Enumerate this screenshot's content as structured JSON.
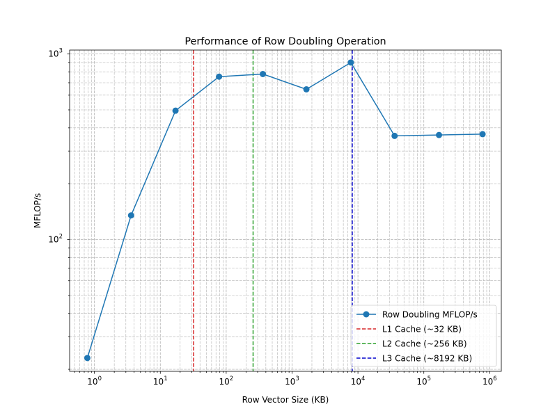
{
  "chart_data": {
    "type": "line",
    "title": "Performance of Row Doubling Operation",
    "xlabel": "Row Vector Size (KB)",
    "ylabel": "MFLOP/s",
    "xscale": "log",
    "yscale": "log",
    "xlim": [
      0.42,
      1500000
    ],
    "ylim": [
      19.5,
      1050
    ],
    "grid": true,
    "legend_position": "lower right",
    "x_ticks": [
      {
        "value": 1,
        "base": "10",
        "exp": "0"
      },
      {
        "value": 10,
        "base": "10",
        "exp": "1"
      },
      {
        "value": 100,
        "base": "10",
        "exp": "2"
      },
      {
        "value": 1000,
        "base": "10",
        "exp": "3"
      },
      {
        "value": 10000,
        "base": "10",
        "exp": "4"
      },
      {
        "value": 100000,
        "base": "10",
        "exp": "5"
      },
      {
        "value": 1000000,
        "base": "10",
        "exp": "6"
      }
    ],
    "y_ticks": [
      {
        "value": 100,
        "base": "10",
        "exp": "2"
      },
      {
        "value": 1000,
        "base": "10",
        "exp": "3"
      }
    ],
    "series": [
      {
        "name": "Row Doubling MFLOP/s",
        "color": "#1f77b4",
        "marker": "circle",
        "x": [
          0.78,
          3.6,
          17,
          78,
          360,
          1650,
          7800,
          36000,
          170000,
          780000
        ],
        "y": [
          23,
          135,
          495,
          755,
          780,
          645,
          900,
          362,
          366,
          370
        ]
      }
    ],
    "reference_lines": [
      {
        "name": "L1 Cache (~32 KB)",
        "x": 32,
        "color": "#d62728"
      },
      {
        "name": "L2 Cache (~256 KB)",
        "x": 256,
        "color": "#2ca02c"
      },
      {
        "name": "L3 Cache (~8192 KB)",
        "x": 8192,
        "color": "#0000cc"
      }
    ]
  }
}
